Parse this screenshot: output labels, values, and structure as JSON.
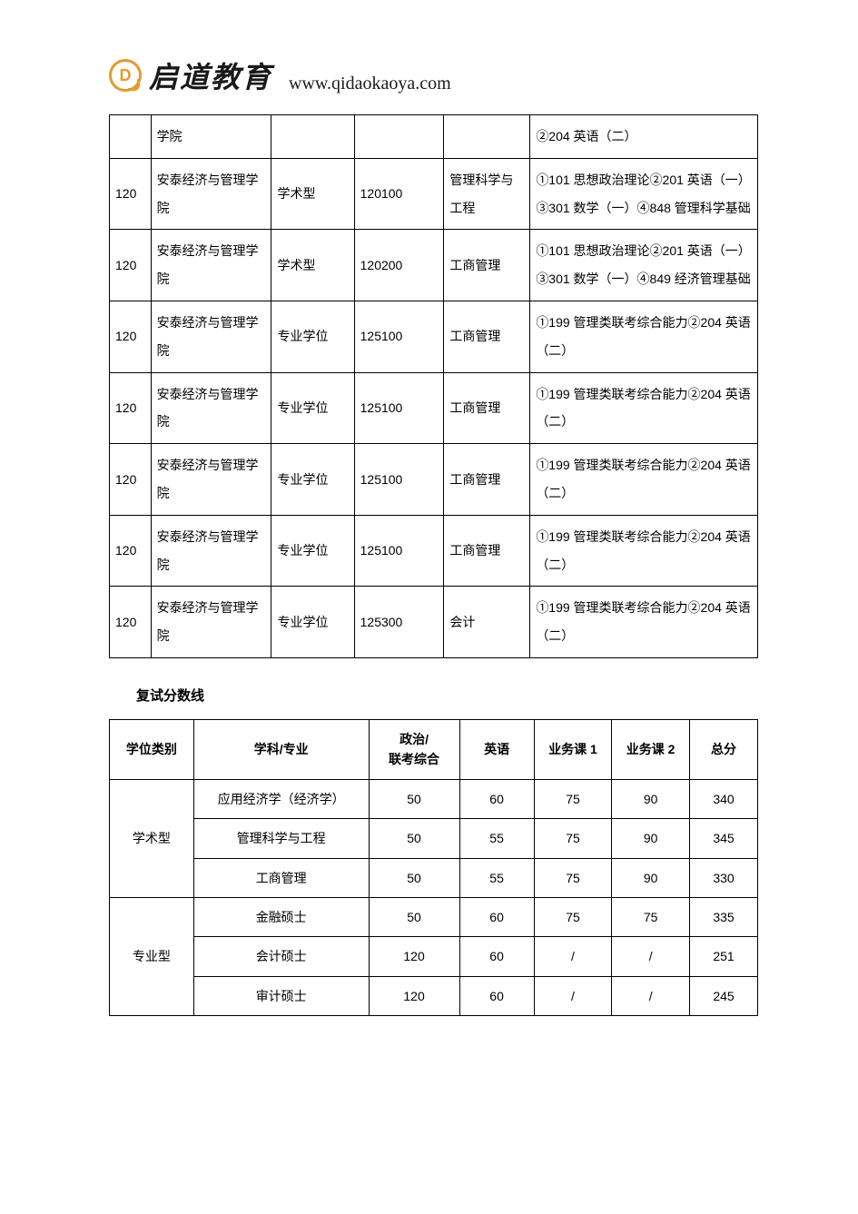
{
  "header": {
    "logo_letter": "D",
    "brand": "启道教育",
    "url": "www.qidaokaoya.com",
    "brand_color": "#e39b2f"
  },
  "table1": {
    "columns": [
      "code",
      "college",
      "degree_type",
      "major_code",
      "major",
      "subjects"
    ],
    "col_widths_pct": [
      6,
      17.5,
      12,
      13,
      12.5,
      33
    ],
    "border_color": "#000000",
    "font_size": 14,
    "line_height": 2.2,
    "rows": [
      {
        "code": "",
        "college": "学院",
        "degree_type": "",
        "major_code": "",
        "major": "",
        "subjects": "②204 英语（二）"
      },
      {
        "code": "120",
        "college": "安泰经济与管理学院",
        "degree_type": "学术型",
        "major_code": "120100",
        "major": "管理科学与工程",
        "subjects": "①101 思想政治理论②201 英语（一）③301 数学（一）④848 管理科学基础"
      },
      {
        "code": "120",
        "college": "安泰经济与管理学院",
        "degree_type": "学术型",
        "major_code": "120200",
        "major": "工商管理",
        "subjects": "①101 思想政治理论②201 英语（一）③301 数学（一）④849 经济管理基础"
      },
      {
        "code": "120",
        "college": "安泰经济与管理学院",
        "degree_type": "专业学位",
        "major_code": "125100",
        "major": "工商管理",
        "subjects": "①199 管理类联考综合能力②204 英语（二）"
      },
      {
        "code": "120",
        "college": "安泰经济与管理学院",
        "degree_type": "专业学位",
        "major_code": "125100",
        "major": "工商管理",
        "subjects": "①199 管理类联考综合能力②204 英语（二）"
      },
      {
        "code": "120",
        "college": "安泰经济与管理学院",
        "degree_type": "专业学位",
        "major_code": "125100",
        "major": "工商管理",
        "subjects": "①199 管理类联考综合能力②204 英语（二）"
      },
      {
        "code": "120",
        "college": "安泰经济与管理学院",
        "degree_type": "专业学位",
        "major_code": "125100",
        "major": "工商管理",
        "subjects": "①199 管理类联考综合能力②204 英语（二）"
      },
      {
        "code": "120",
        "college": "安泰经济与管理学院",
        "degree_type": "专业学位",
        "major_code": "125300",
        "major": "会计",
        "subjects": "①199 管理类联考综合能力②204 英语（二）"
      }
    ]
  },
  "section_title": "复试分数线",
  "table2": {
    "border_color": "#000000",
    "font_size": 14,
    "col_widths_pct": [
      13,
      27,
      14,
      11.5,
      12,
      12,
      10.5
    ],
    "headers": [
      "学位类别",
      "学科/专业",
      "政治/\n联考综合",
      "英语",
      "业务课 1",
      "业务课 2",
      "总分"
    ],
    "groups": [
      {
        "cat": "学术型",
        "rows": [
          {
            "major": "应用经济学（经济学）",
            "c1": "50",
            "c2": "60",
            "c3": "75",
            "c4": "90",
            "total": "340"
          },
          {
            "major": "管理科学与工程",
            "c1": "50",
            "c2": "55",
            "c3": "75",
            "c4": "90",
            "total": "345"
          },
          {
            "major": "工商管理",
            "c1": "50",
            "c2": "55",
            "c3": "75",
            "c4": "90",
            "total": "330"
          }
        ]
      },
      {
        "cat": "专业型",
        "rows": [
          {
            "major": "金融硕士",
            "c1": "50",
            "c2": "60",
            "c3": "75",
            "c4": "75",
            "total": "335"
          },
          {
            "major": "会计硕士",
            "c1": "120",
            "c2": "60",
            "c3": "/",
            "c4": "/",
            "total": "251"
          },
          {
            "major": "审计硕士",
            "c1": "120",
            "c2": "60",
            "c3": "/",
            "c4": "/",
            "total": "245"
          }
        ]
      }
    ]
  }
}
